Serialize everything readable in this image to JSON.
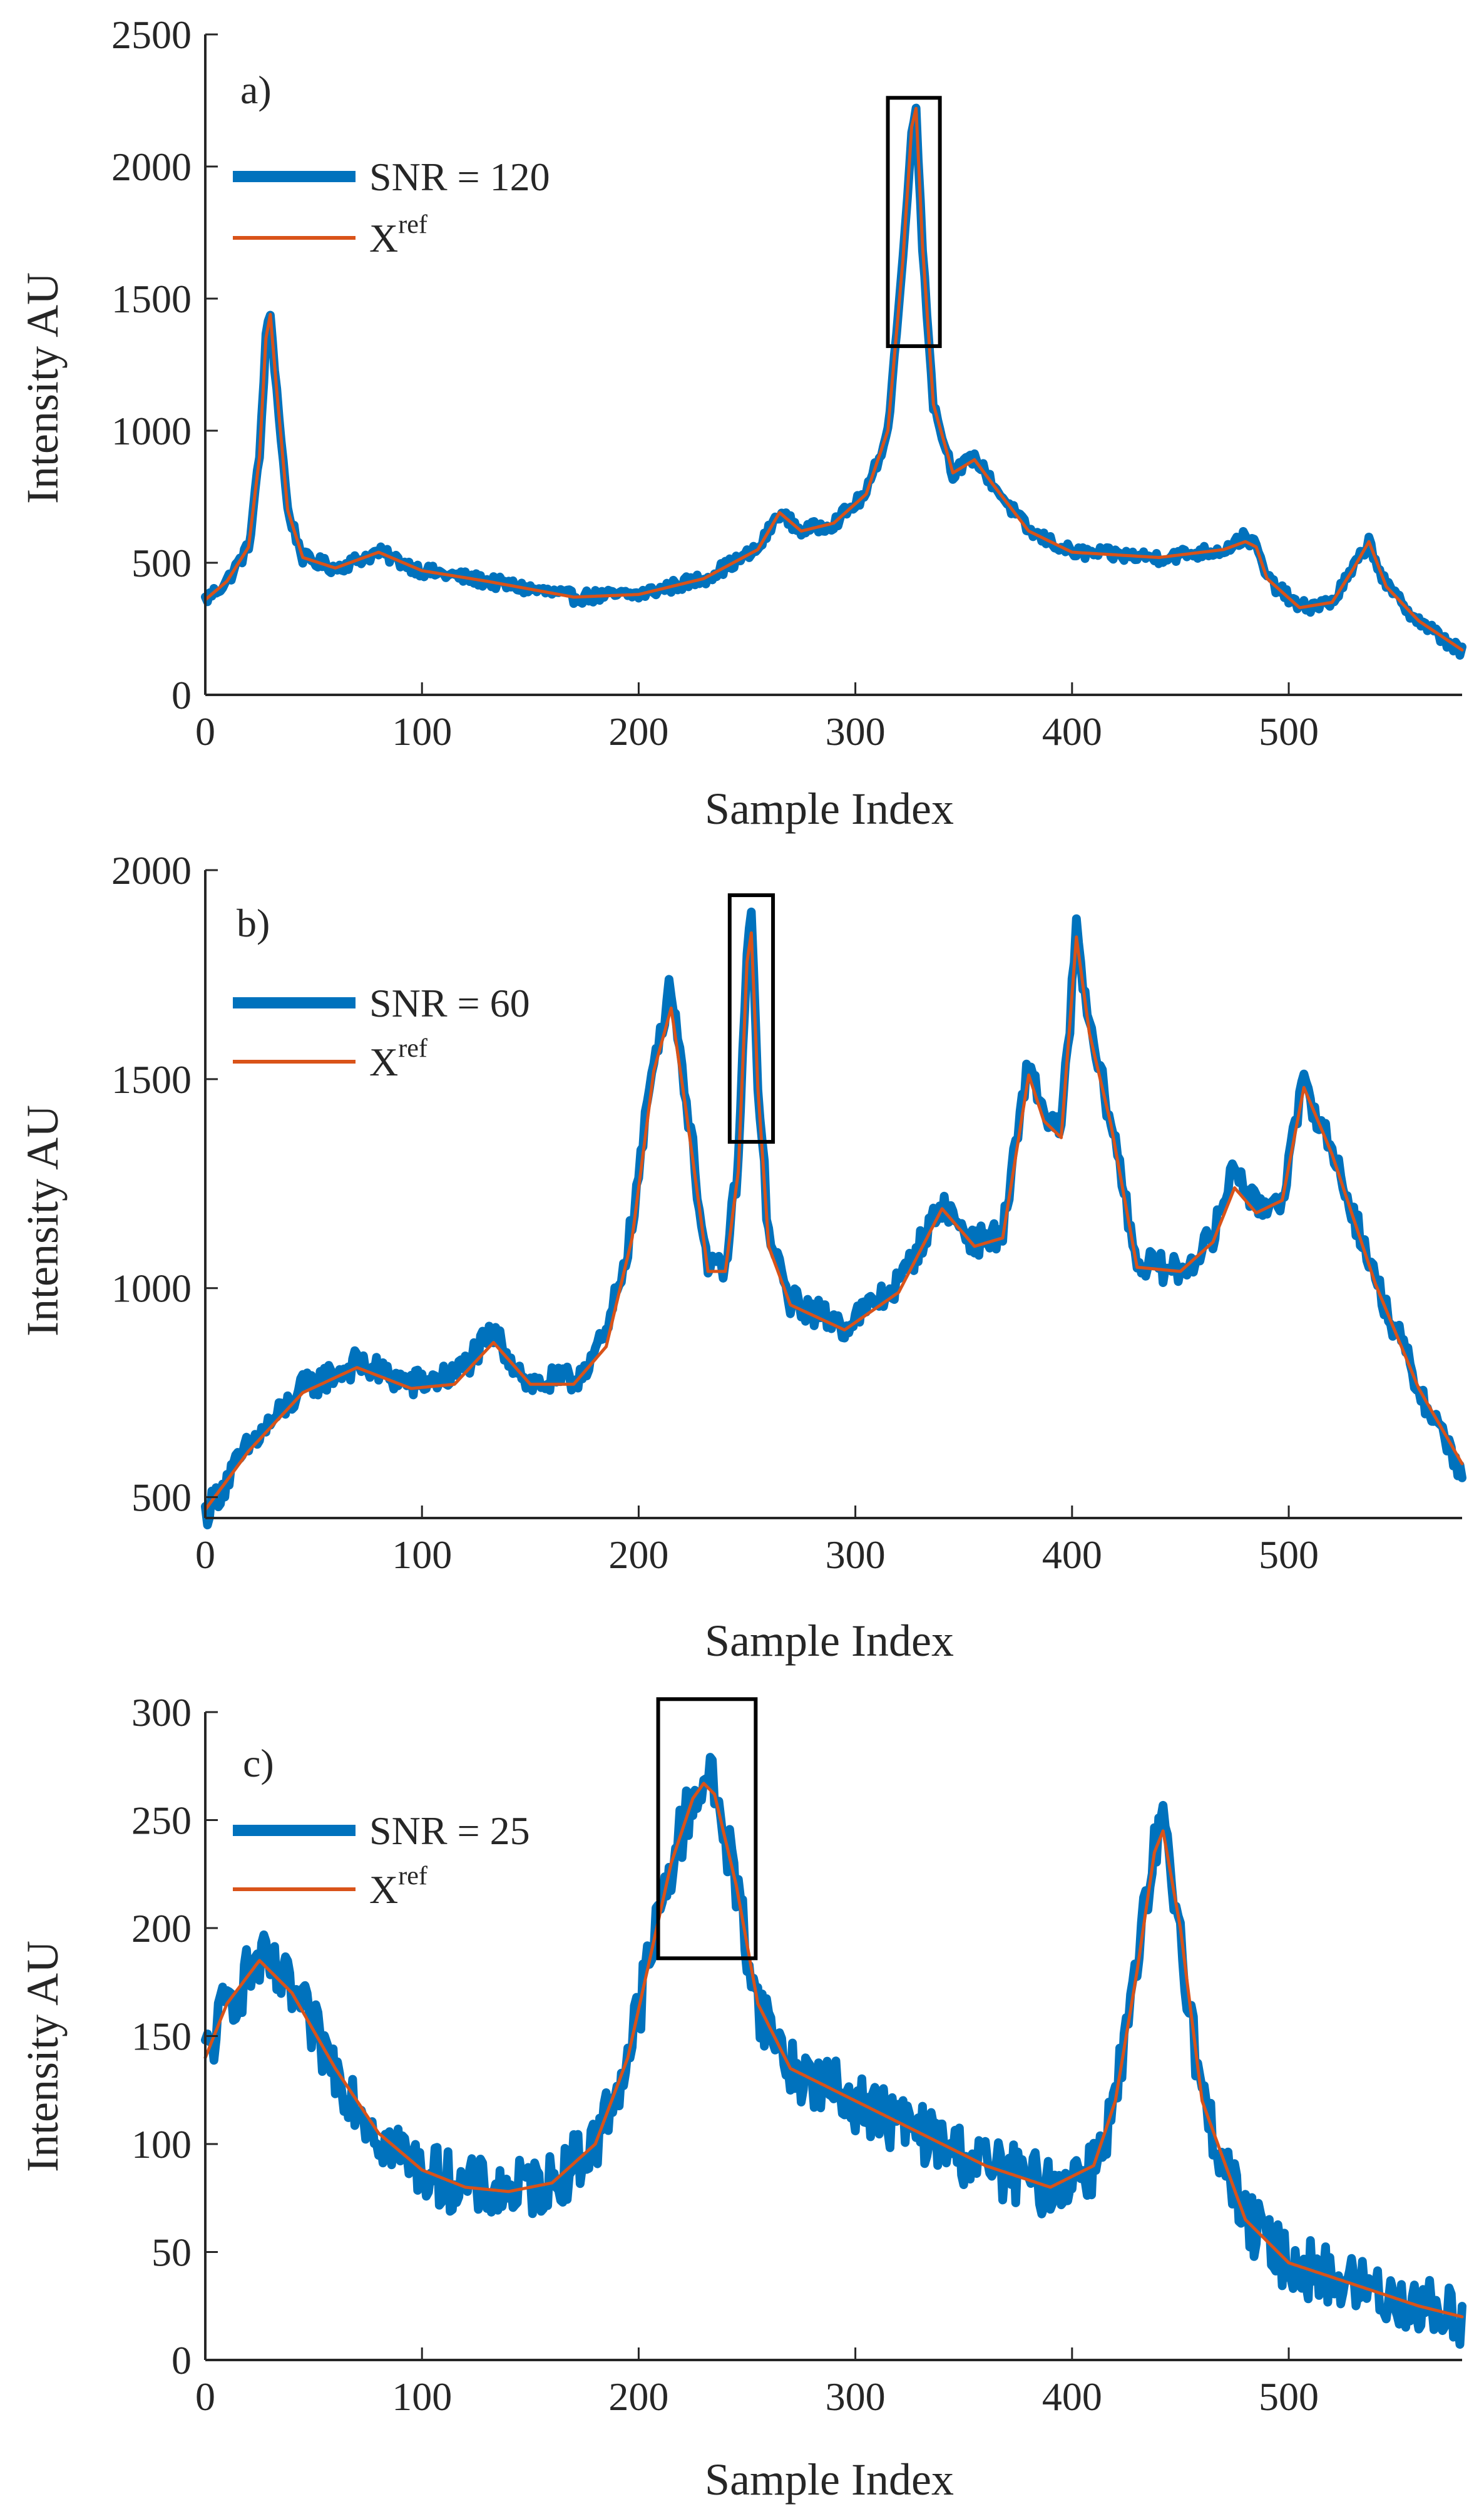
{
  "chart_data": [
    {
      "type": "line",
      "panel_label": "a)",
      "xlabel": "Sample Index",
      "ylabel": "Intensity AU",
      "xlim": [
        0,
        580
      ],
      "ylim": [
        0,
        2500
      ],
      "xticks": [
        0,
        100,
        200,
        300,
        400,
        500
      ],
      "yticks": [
        0,
        500,
        1000,
        1500,
        2000,
        2500
      ],
      "grid": false,
      "legend_position": "upper-left",
      "noise_amplitude": 25,
      "series": [
        {
          "name": "SNR = 120",
          "color": "#0072BD",
          "style": "thick-noisy",
          "x": [
            0,
            10,
            20,
            25,
            28,
            30,
            33,
            38,
            45,
            60,
            80,
            100,
            130,
            170,
            200,
            230,
            255,
            265,
            275,
            290,
            305,
            315,
            322,
            326,
            328,
            331,
            336,
            345,
            355,
            365,
            380,
            400,
            440,
            470,
            480,
            485,
            490,
            505,
            520,
            530,
            537,
            545,
            560,
            580
          ],
          "values": [
            360,
            430,
            560,
            900,
            1350,
            1440,
            1150,
            700,
            520,
            480,
            540,
            470,
            430,
            370,
            380,
            440,
            550,
            690,
            620,
            650,
            760,
            1000,
            1650,
            2150,
            2200,
            1700,
            1100,
            840,
            900,
            780,
            620,
            540,
            520,
            550,
            600,
            560,
            440,
            330,
            350,
            480,
            580,
            410,
            280,
            160
          ]
        },
        {
          "name": "X",
          "name_superscript": "ref",
          "color": "#D95319",
          "style": "thin-smooth",
          "x": [
            0,
            10,
            20,
            25,
            28,
            30,
            33,
            38,
            45,
            60,
            80,
            100,
            130,
            170,
            200,
            230,
            255,
            265,
            275,
            290,
            305,
            315,
            322,
            326,
            328,
            331,
            336,
            345,
            355,
            365,
            380,
            400,
            440,
            470,
            480,
            485,
            490,
            505,
            520,
            530,
            537,
            545,
            560,
            580
          ],
          "values": [
            360,
            430,
            560,
            900,
            1350,
            1440,
            1150,
            700,
            520,
            480,
            540,
            470,
            430,
            370,
            380,
            440,
            550,
            690,
            620,
            650,
            760,
            1000,
            1650,
            2150,
            2220,
            1700,
            1100,
            840,
            890,
            780,
            620,
            540,
            520,
            550,
            580,
            560,
            440,
            330,
            350,
            480,
            580,
            410,
            280,
            170
          ]
        }
      ],
      "highlight_box": {
        "x_range": [
          315,
          339
        ],
        "y_range": [
          1320,
          2260
        ]
      }
    },
    {
      "type": "line",
      "panel_label": "b)",
      "xlabel": "Sample Index",
      "ylabel": "Intensity AU",
      "xlim": [
        0,
        580
      ],
      "ylim": [
        450,
        2000
      ],
      "xticks": [
        0,
        100,
        200,
        300,
        400,
        500
      ],
      "yticks": [
        500,
        1000,
        1500,
        2000
      ],
      "grid": false,
      "legend_position": "upper-left",
      "noise_amplitude": 35,
      "series": [
        {
          "name": "SNR = 60",
          "color": "#0072BD",
          "style": "thick-noisy",
          "x": [
            0,
            20,
            45,
            70,
            95,
            115,
            133,
            150,
            170,
            185,
            197,
            207,
            215,
            222,
            232,
            240,
            246,
            250,
            252,
            255,
            260,
            270,
            295,
            320,
            340,
            355,
            368,
            380,
            387,
            395,
            402,
            408,
            418,
            430,
            450,
            465,
            475,
            485,
            497,
            507,
            520,
            540,
            560,
            580
          ],
          "values": [
            460,
            620,
            760,
            820,
            770,
            790,
            890,
            770,
            780,
            880,
            1150,
            1550,
            1730,
            1450,
            1040,
            1050,
            1300,
            1800,
            1880,
            1500,
            1120,
            970,
            910,
            1010,
            1200,
            1110,
            1130,
            1540,
            1420,
            1370,
            1850,
            1620,
            1400,
            1060,
            1040,
            1120,
            1300,
            1190,
            1220,
            1490,
            1330,
            1020,
            760,
            560
          ]
        },
        {
          "name": "X",
          "name_superscript": "ref",
          "color": "#D95319",
          "style": "thin-smooth",
          "x": [
            0,
            20,
            45,
            70,
            95,
            115,
            133,
            150,
            170,
            185,
            197,
            207,
            215,
            222,
            232,
            240,
            246,
            250,
            252,
            255,
            260,
            270,
            295,
            320,
            340,
            355,
            368,
            380,
            387,
            395,
            402,
            408,
            418,
            430,
            450,
            465,
            475,
            485,
            497,
            507,
            520,
            540,
            560,
            580
          ],
          "values": [
            470,
            610,
            750,
            810,
            760,
            770,
            870,
            770,
            770,
            860,
            1120,
            1520,
            1670,
            1420,
            1040,
            1040,
            1280,
            1780,
            1850,
            1480,
            1100,
            960,
            900,
            990,
            1190,
            1100,
            1120,
            1510,
            1400,
            1360,
            1840,
            1610,
            1390,
            1050,
            1040,
            1110,
            1240,
            1180,
            1210,
            1480,
            1320,
            1010,
            760,
            580
          ]
        }
      ],
      "highlight_box": {
        "x_range": [
          242,
          262
        ],
        "y_range": [
          1350,
          1940
        ]
      }
    },
    {
      "type": "line",
      "panel_label": "c)",
      "xlabel": "Sample Index",
      "ylabel": "Intensity AU",
      "xlim": [
        0,
        580
      ],
      "ylim": [
        0,
        300
      ],
      "xticks": [
        0,
        100,
        200,
        300,
        400,
        500
      ],
      "yticks": [
        0,
        50,
        100,
        150,
        200,
        250,
        300
      ],
      "grid": false,
      "legend_position": "upper-left",
      "noise_amplitude": 14,
      "series": [
        {
          "name": "SNR = 25",
          "color": "#0072BD",
          "style": "thick-noisy",
          "x": [
            0,
            10,
            25,
            40,
            60,
            80,
            100,
            120,
            140,
            160,
            180,
            195,
            205,
            215,
            225,
            230,
            235,
            245,
            255,
            270,
            300,
            330,
            360,
            390,
            410,
            420,
            430,
            438,
            442,
            450,
            460,
            480,
            500,
            530,
            560,
            580
          ],
          "values": [
            140,
            165,
            185,
            170,
            135,
            105,
            88,
            80,
            78,
            82,
            100,
            140,
            185,
            230,
            260,
            270,
            265,
            220,
            165,
            135,
            120,
            105,
            90,
            80,
            90,
            120,
            180,
            235,
            245,
            200,
            120,
            65,
            45,
            35,
            25,
            20
          ]
        },
        {
          "name": "X",
          "name_superscript": "ref",
          "color": "#D95319",
          "style": "thin-smooth",
          "x": [
            0,
            10,
            25,
            40,
            60,
            80,
            100,
            120,
            140,
            160,
            180,
            195,
            205,
            215,
            225,
            230,
            235,
            245,
            255,
            270,
            300,
            330,
            360,
            390,
            410,
            420,
            430,
            438,
            442,
            450,
            460,
            480,
            500,
            530,
            560,
            580
          ],
          "values": [
            140,
            165,
            185,
            170,
            135,
            105,
            88,
            80,
            78,
            82,
            100,
            140,
            185,
            230,
            260,
            267,
            262,
            220,
            165,
            135,
            120,
            105,
            90,
            80,
            90,
            120,
            180,
            235,
            245,
            200,
            120,
            65,
            45,
            35,
            25,
            20
          ]
        }
      ],
      "highlight_box": {
        "x_range": [
          209,
          254
        ],
        "y_range": [
          186,
          306
        ]
      }
    }
  ]
}
